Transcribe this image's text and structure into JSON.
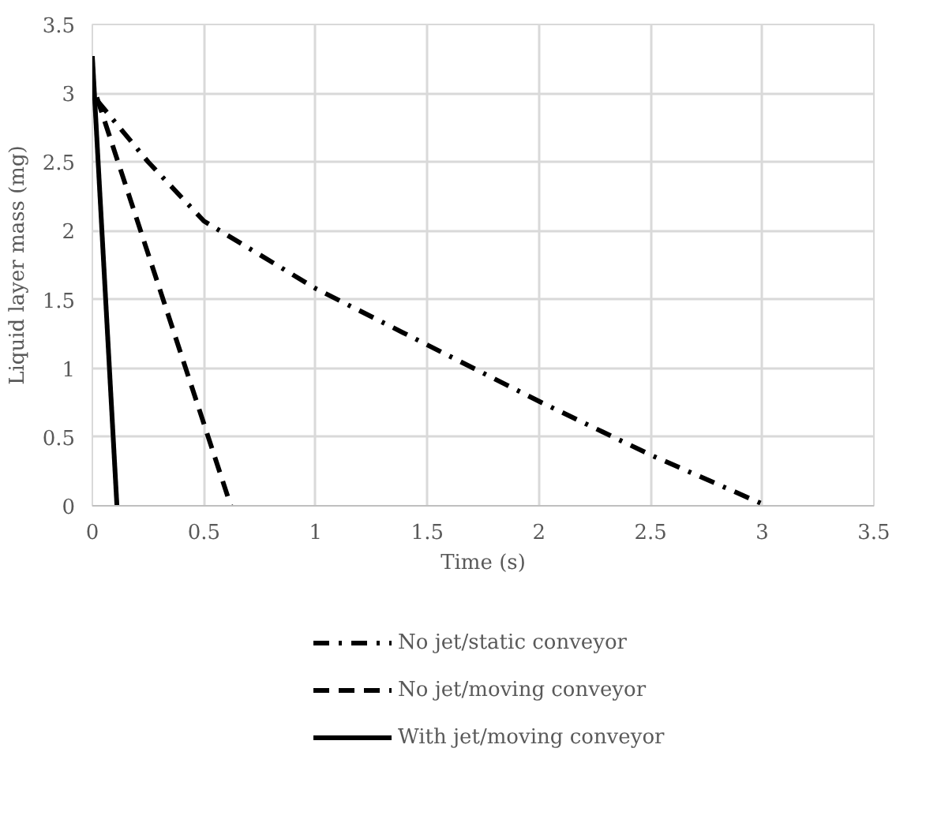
{
  "chart_data": {
    "type": "line",
    "xlabel": "Time (s)",
    "ylabel": "Liquid layer mass (mg)",
    "xlim": [
      0,
      3.5
    ],
    "xticks": [
      0,
      0.5,
      1,
      1.5,
      2,
      2.5,
      3,
      3.5
    ],
    "ylim": [
      0,
      3.5
    ],
    "yticks": [
      0,
      0.5,
      1,
      1.5,
      2,
      2.5,
      3,
      3.5
    ],
    "grid": true,
    "legend": "bottom",
    "marker": "none",
    "series": [
      {
        "name": "No jet/static conveyor",
        "color": "#000000",
        "line_style": "dashdot",
        "x": [
          0.02,
          0.25,
          0.5,
          1,
          1.5,
          2,
          2.5,
          3.02
        ],
        "values": [
          2.95,
          2.5,
          2.07,
          1.58,
          1.17,
          0.76,
          0.37,
          0
        ]
      },
      {
        "name": "No jet/moving conveyor",
        "color": "#000000",
        "line_style": "dashed",
        "x": [
          0.02,
          0.62
        ],
        "values": [
          2.97,
          0
        ]
      },
      {
        "name": "With jet/moving conveyor",
        "color": "#000000",
        "line_style": "solid",
        "x": [
          0,
          0.11
        ],
        "values": [
          3.27,
          0
        ]
      }
    ]
  }
}
